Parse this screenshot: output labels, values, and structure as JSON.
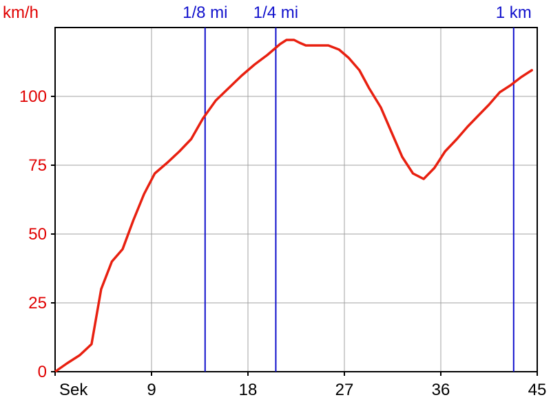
{
  "chart_data": {
    "type": "line",
    "ylabel": "km/h",
    "xlabel": "Sek",
    "xlim": [
      0,
      45
    ],
    "ylim": [
      0,
      125
    ],
    "xticks": [
      {
        "value": 0,
        "label": "Sek"
      },
      {
        "value": 9,
        "label": "9"
      },
      {
        "value": 18,
        "label": "18"
      },
      {
        "value": 27,
        "label": "27"
      },
      {
        "value": 36,
        "label": "36"
      },
      {
        "value": 45,
        "label": "45"
      }
    ],
    "yticks": [
      0,
      25,
      50,
      75,
      100
    ],
    "grid": true,
    "colors": {
      "series": "#e82010",
      "ytext": "#e00000",
      "markers": "#1010cc",
      "grid": "#a0a0a0",
      "axis": "#000000"
    },
    "markers": [
      {
        "x": 14.0,
        "label": "1/8 mi"
      },
      {
        "x": 20.6,
        "label": "1/4 mi"
      },
      {
        "x": 42.8,
        "label": "1 km"
      }
    ],
    "series": [
      {
        "x": [
          0,
          1.1,
          2.3,
          3.4,
          4.3,
          5.3,
          6.3,
          7.3,
          8.3,
          9.3,
          10.5,
          11.6,
          12.7,
          13.8,
          15.0,
          16.2,
          17.4,
          18.6,
          19.8,
          21.0,
          21.6,
          22.3,
          22.8,
          23.4,
          24.4,
          25.5,
          26.5,
          27.4,
          28.4,
          29.3,
          30.4,
          31.4,
          32.4,
          33.4,
          34.4,
          35.4,
          36.4,
          37.5,
          38.5,
          39.5,
          40.5,
          41.5,
          42.5,
          43.5,
          44.5
        ],
        "y": [
          0,
          3,
          6,
          10,
          30,
          40,
          44.5,
          55,
          64.5,
          72,
          76,
          80,
          84.5,
          92,
          98.5,
          103,
          107.5,
          111.5,
          115,
          119,
          120.5,
          120.5,
          119.5,
          118.5,
          118.5,
          118.5,
          117,
          114,
          109.5,
          103,
          96,
          87,
          78,
          72,
          70,
          74,
          80,
          84.5,
          89,
          93,
          97,
          101.5,
          104,
          107,
          109.5
        ]
      }
    ]
  }
}
